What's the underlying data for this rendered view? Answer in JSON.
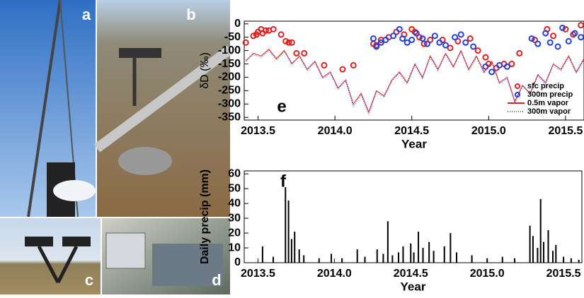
{
  "panels": [
    {
      "label": "a"
    },
    {
      "label": "b"
    },
    {
      "label": "c"
    },
    {
      "label": "d"
    }
  ],
  "chart_data": [
    {
      "type": "scatter",
      "annotation": "e",
      "ylabel": "δD (‰)",
      "xlabel": "Year",
      "legend": "lower right",
      "xlim": [
        2013.41,
        2015.62
      ],
      "ylim": [
        -360,
        10
      ],
      "xticks": [
        2013.5,
        {
          "value": 2014,
          "label": "2014.0"
        },
        2014.5,
        {
          "value": 2015,
          "label": "2015.0"
        },
        2015.5
      ],
      "yticks": [
        0,
        -50,
        -100,
        -150,
        -200,
        -250,
        -300,
        -350
      ],
      "series": [
        {
          "name": "sfc precip",
          "color": "#e02020",
          "style": "circle",
          "x": [
            2013.42,
            2013.47,
            2013.49,
            2013.5,
            2013.52,
            2013.53,
            2013.55,
            2013.57,
            2013.6,
            2013.65,
            2013.68,
            2013.7,
            2013.72,
            2013.75,
            2013.8,
            2013.93,
            2014.05,
            2014.12,
            2014.25,
            2014.27,
            2014.3,
            2014.35,
            2014.4,
            2014.45,
            2014.5,
            2014.52,
            2014.55,
            2014.58,
            2014.62,
            2014.7,
            2014.75,
            2014.8,
            2014.88,
            2014.93,
            2014.98,
            2015,
            2015.05,
            2015.1,
            2015.15,
            2015.2,
            2015.3,
            2015.38,
            2015.42,
            2015.5,
            2015.55,
            2015.6
          ],
          "values": [
            -70,
            -45,
            -40,
            -30,
            -20,
            -35,
            -25,
            -25,
            -20,
            -40,
            -65,
            -70,
            -70,
            -110,
            -110,
            -155,
            -170,
            -155,
            -75,
            -80,
            -60,
            -50,
            -30,
            -40,
            -20,
            -30,
            -50,
            -75,
            -60,
            -60,
            -90,
            -65,
            -55,
            -100,
            -125,
            -150,
            -165,
            -150,
            -150,
            -110,
            -60,
            -20,
            -45,
            -20,
            -40,
            -5
          ]
        },
        {
          "name": "300m precip",
          "color": "#2040e0",
          "style": "circle",
          "x": [
            2014.25,
            2014.27,
            2014.3,
            2014.33,
            2014.38,
            2014.42,
            2014.44,
            2014.47,
            2014.5,
            2014.53,
            2014.57,
            2014.6,
            2014.65,
            2014.68,
            2014.72,
            2014.78,
            2014.82,
            2014.85,
            2014.9,
            2014.98,
            2015.02,
            2015.07,
            2015.12,
            2015.28,
            2015.32,
            2015.37,
            2015.4,
            2015.45,
            2015.48,
            2015.52,
            2015.56,
            2015.6
          ],
          "values": [
            -55,
            -85,
            -70,
            -60,
            -45,
            -20,
            -55,
            -70,
            -60,
            -35,
            -55,
            -75,
            -45,
            -70,
            -80,
            -50,
            -40,
            -70,
            -85,
            -160,
            -180,
            -155,
            -160,
            -55,
            -75,
            -35,
            -70,
            -85,
            -15,
            -65,
            -35,
            -50
          ]
        },
        {
          "name": "0.5m vapor",
          "color": "#e02020",
          "style": "solid",
          "x": [
            2013.42,
            2013.47,
            2013.52,
            2013.57,
            2013.62,
            2013.67,
            2013.72,
            2013.77,
            2013.82,
            2013.87,
            2013.92,
            2013.97,
            2014.02,
            2014.07,
            2014.12,
            2014.17,
            2014.22,
            2014.27,
            2014.32,
            2014.37,
            2014.42,
            2014.47,
            2014.52,
            2014.57,
            2014.62,
            2014.67,
            2014.72,
            2014.77,
            2014.82,
            2014.87,
            2014.92,
            2014.97,
            2015.02,
            2015.07,
            2015.12,
            2015.17,
            2015.22,
            2015.27,
            2015.32,
            2015.37,
            2015.42,
            2015.47,
            2015.52,
            2015.57,
            2015.62
          ],
          "values": [
            -140,
            -110,
            -120,
            -95,
            -130,
            -100,
            -150,
            -120,
            -170,
            -140,
            -200,
            -180,
            -240,
            -210,
            -300,
            -260,
            -330,
            -250,
            -270,
            -210,
            -180,
            -220,
            -150,
            -200,
            -120,
            -170,
            -110,
            -160,
            -100,
            -170,
            -120,
            -180,
            -140,
            -220,
            -200,
            -290,
            -230,
            -260,
            -190,
            -220,
            -150,
            -170,
            -120,
            -180,
            -130
          ]
        },
        {
          "name": "300m vapor",
          "color": "#2040e0",
          "style": "dotted",
          "x": [
            2013.42,
            2013.47,
            2013.52,
            2013.57,
            2013.62,
            2013.67,
            2013.72,
            2013.77,
            2013.82,
            2013.87,
            2013.92,
            2013.97,
            2014.02,
            2014.07,
            2014.12,
            2014.17,
            2014.22,
            2014.27,
            2014.32,
            2014.37,
            2014.42,
            2014.47,
            2014.52,
            2014.57,
            2014.62,
            2014.67,
            2014.72,
            2014.77,
            2014.82,
            2014.87,
            2014.92,
            2014.97,
            2015.02,
            2015.07,
            2015.12,
            2015.17,
            2015.22,
            2015.27,
            2015.32,
            2015.37,
            2015.42,
            2015.47,
            2015.52,
            2015.57,
            2015.62
          ],
          "values": [
            -135,
            -115,
            -125,
            -100,
            -135,
            -105,
            -145,
            -125,
            -175,
            -145,
            -205,
            -185,
            -245,
            -215,
            -310,
            -265,
            -340,
            -255,
            -275,
            -215,
            -185,
            -225,
            -155,
            -205,
            -125,
            -175,
            -115,
            -165,
            -105,
            -175,
            -125,
            -185,
            -145,
            -225,
            -205,
            -295,
            -235,
            -265,
            -195,
            -225,
            -155,
            -175,
            -125,
            -185,
            -135
          ]
        }
      ]
    },
    {
      "type": "bar",
      "annotation": "f",
      "ylabel": "Daily precip (mm)",
      "xlabel": "Year",
      "color": "#000000",
      "xlim": [
        2013.41,
        2015.62
      ],
      "ylim": [
        0,
        62
      ],
      "xticks": [
        2013.5,
        {
          "value": 2014,
          "label": "2014.0"
        },
        2014.5,
        {
          "value": 2015,
          "label": "2015.0"
        },
        2015.5
      ],
      "yticks": [
        0,
        10,
        20,
        30,
        40,
        50,
        60
      ],
      "x": [
        2013.53,
        2013.6,
        2013.68,
        2013.7,
        2013.72,
        2013.74,
        2013.77,
        2013.8,
        2013.9,
        2013.98,
        2014.05,
        2014.15,
        2014.2,
        2014.28,
        2014.32,
        2014.35,
        2014.38,
        2014.42,
        2014.45,
        2014.5,
        2014.52,
        2014.55,
        2014.58,
        2014.62,
        2014.65,
        2014.72,
        2014.76,
        2014.8,
        2014.9,
        2015,
        2015.1,
        2015.18,
        2015.28,
        2015.3,
        2015.33,
        2015.35,
        2015.37,
        2015.4,
        2015.43,
        2015.45,
        2015.5,
        2015.55,
        2015.6
      ],
      "values": [
        11,
        4,
        51,
        42,
        16,
        21,
        9,
        5,
        3,
        6,
        3,
        9,
        4,
        9,
        6,
        28,
        5,
        7,
        11,
        13,
        7,
        21,
        10,
        14,
        8,
        11,
        20,
        7,
        5,
        3,
        4,
        3,
        25,
        18,
        10,
        43,
        14,
        22,
        8,
        12,
        4,
        3,
        2
      ]
    }
  ]
}
